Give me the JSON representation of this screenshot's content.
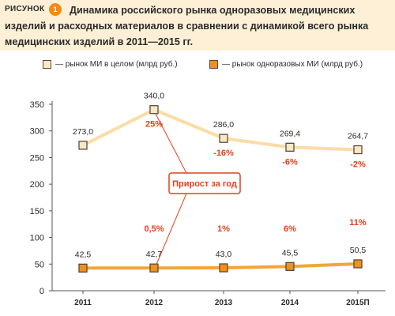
{
  "figure": {
    "label": "РИСУНОК",
    "number": "1",
    "title": "Динамика российского рынка одноразовых медицинских изделий и расходных материалов в сравнении с динамикой всего рынка медицинских изделий в 2011—2015 гг."
  },
  "annotation": "Прирост за год",
  "colors": {
    "total_line": "#fbdca5",
    "total_marker_fill": "#fbe8c6",
    "disposable_line": "#f3a53a",
    "disposable_marker_fill": "#f0901e",
    "marker_border": "#5a4a3a",
    "growth_text": "#e2401c",
    "callout_border": "#e2401c",
    "header_bg": "#fdf0d6"
  },
  "chart_data": {
    "type": "line",
    "categories": [
      "2011",
      "2012",
      "2013",
      "2014",
      "2015П"
    ],
    "ylim": [
      0,
      350
    ],
    "yticks": [
      0,
      50,
      100,
      150,
      200,
      250,
      300,
      350
    ],
    "grid": false,
    "legend_position": "top",
    "series": [
      {
        "name": "— рынок МИ в целом (млрд руб.)",
        "key": "total",
        "values": [
          273.0,
          340.0,
          286.0,
          269.4,
          264.7
        ],
        "value_labels": [
          "273,0",
          "340,0",
          "286,0",
          "269,4",
          "264,7"
        ],
        "growth_labels": [
          "",
          "25%",
          "-16%",
          "-6%",
          "-2%"
        ]
      },
      {
        "name": "— рынок одноразовых МИ (млрд руб.)",
        "key": "disposable",
        "values": [
          42.5,
          42.7,
          43.0,
          45.5,
          50.5
        ],
        "value_labels": [
          "42,5",
          "42,7",
          "43,0",
          "45,5",
          "50,5"
        ],
        "growth_labels": [
          "",
          "0,5%",
          "1%",
          "6%",
          "11%"
        ]
      }
    ]
  }
}
